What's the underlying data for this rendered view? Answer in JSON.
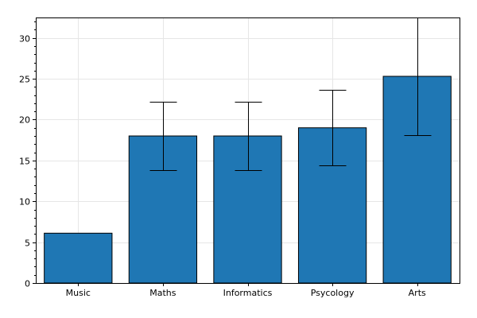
{
  "chart_data": {
    "type": "bar",
    "title": "",
    "xlabel": "",
    "ylabel": "",
    "categories": [
      "Music",
      "Maths",
      "Informatics",
      "Psycology",
      "Arts"
    ],
    "values": [
      6.1,
      18.0,
      18.0,
      19.0,
      25.3
    ],
    "error_lower": [
      null,
      13.8,
      13.8,
      14.4,
      18.1
    ],
    "error_upper": [
      null,
      22.2,
      22.2,
      23.6,
      33.0
    ],
    "ylim": [
      0,
      32.5
    ],
    "yticks": [
      0,
      5,
      10,
      15,
      20,
      25,
      30
    ],
    "grid": true,
    "colors": {
      "bar": "#1f77b4",
      "edge": "#000000",
      "grid": "#e6e6e6"
    }
  }
}
